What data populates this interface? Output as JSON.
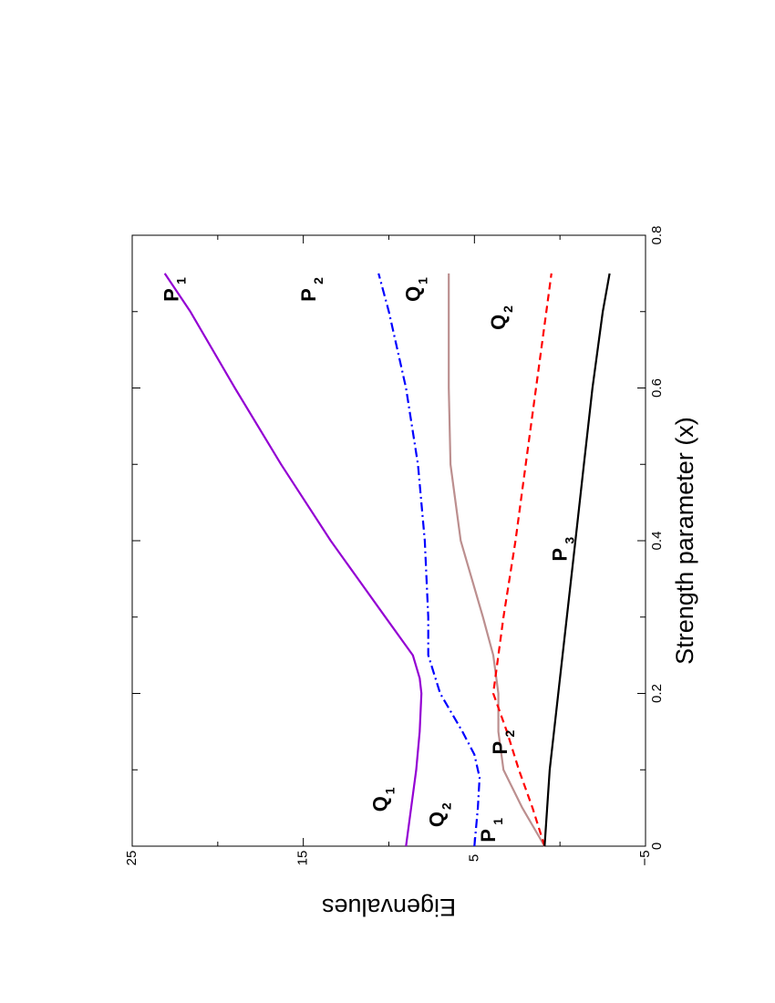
{
  "chart_data": {
    "type": "line",
    "title": "",
    "xlabel": "Strength parameter (x)",
    "ylabel": "Eigenvalues",
    "xlim": [
      0,
      0.8
    ],
    "ylim": [
      -5,
      25
    ],
    "x_ticks": [
      "0",
      "0.2",
      "0.4",
      "0.6",
      "0.8"
    ],
    "y_ticks": [
      "25",
      "15",
      "5",
      "−5"
    ],
    "grid": false,
    "legend": "none",
    "orientation": "rotated-90-ccw",
    "series": [
      {
        "color": "#9400d3",
        "dash": "solid",
        "points": [
          [
            0,
            9
          ],
          [
            0.05,
            8.7
          ],
          [
            0.1,
            8.4
          ],
          [
            0.15,
            8.2
          ],
          [
            0.2,
            8.1
          ],
          [
            0.22,
            8.2
          ],
          [
            0.25,
            8.6
          ],
          [
            0.3,
            10.2
          ],
          [
            0.4,
            13.4
          ],
          [
            0.5,
            16.3
          ],
          [
            0.6,
            19.0
          ],
          [
            0.7,
            21.6
          ],
          [
            0.75,
            23.1
          ]
        ]
      },
      {
        "color": "#0000ff",
        "dash": "dashdot",
        "points": [
          [
            0,
            5.0
          ],
          [
            0.05,
            4.8
          ],
          [
            0.09,
            4.7
          ],
          [
            0.12,
            5.0
          ],
          [
            0.15,
            5.7
          ],
          [
            0.2,
            7.0
          ],
          [
            0.25,
            7.7
          ],
          [
            0.3,
            7.7
          ],
          [
            0.4,
            7.9
          ],
          [
            0.5,
            8.3
          ],
          [
            0.6,
            9.0
          ],
          [
            0.7,
            10.0
          ],
          [
            0.75,
            10.6
          ]
        ]
      },
      {
        "color": "#bc8f8f",
        "dash": "solid",
        "points": [
          [
            0,
            0.9
          ],
          [
            0.05,
            2.2
          ],
          [
            0.1,
            3.3
          ],
          [
            0.15,
            3.6
          ],
          [
            0.2,
            3.6
          ],
          [
            0.25,
            3.9
          ],
          [
            0.3,
            4.5
          ],
          [
            0.4,
            5.8
          ],
          [
            0.5,
            6.4
          ],
          [
            0.6,
            6.5
          ],
          [
            0.7,
            6.5
          ],
          [
            0.75,
            6.5
          ]
        ]
      },
      {
        "color": "#ff0000",
        "dash": "dashed",
        "points": [
          [
            0,
            0.9
          ],
          [
            0.05,
            1.6
          ],
          [
            0.1,
            2.4
          ],
          [
            0.15,
            3.1
          ],
          [
            0.2,
            3.9
          ],
          [
            0.3,
            3.3
          ],
          [
            0.4,
            2.6
          ],
          [
            0.5,
            2.0
          ],
          [
            0.6,
            1.4
          ],
          [
            0.7,
            0.8
          ],
          [
            0.75,
            0.5
          ]
        ]
      },
      {
        "color": "#000000",
        "dash": "solid",
        "points": [
          [
            0,
            0.9
          ],
          [
            0.1,
            0.6
          ],
          [
            0.2,
            0.1
          ],
          [
            0.3,
            -0.4
          ],
          [
            0.4,
            -0.9
          ],
          [
            0.5,
            -1.4
          ],
          [
            0.6,
            -1.9
          ],
          [
            0.7,
            -2.5
          ],
          [
            0.75,
            -2.9
          ]
        ]
      }
    ],
    "annotations": [
      {
        "text": "P",
        "sub": "1",
        "x": 0.713,
        "y": 22.3
      },
      {
        "text": "P",
        "sub": "2",
        "x": 0.713,
        "y": 14.3
      },
      {
        "text": "Q",
        "sub": "1",
        "x": 0.713,
        "y": 8.2
      },
      {
        "text": "Q",
        "sub": "2",
        "x": 0.676,
        "y": 3.2
      },
      {
        "text": "P",
        "sub": "3",
        "x": 0.373,
        "y": -0.4
      },
      {
        "text": "P",
        "sub": "2",
        "x": 0.12,
        "y": 3.1
      },
      {
        "text": "Q",
        "sub": "1",
        "x": 0.045,
        "y": 10.1
      },
      {
        "text": "Q",
        "sub": "2",
        "x": 0.025,
        "y": 6.8
      },
      {
        "text": "P",
        "sub": "1",
        "x": 0.005,
        "y": 3.8
      }
    ]
  }
}
